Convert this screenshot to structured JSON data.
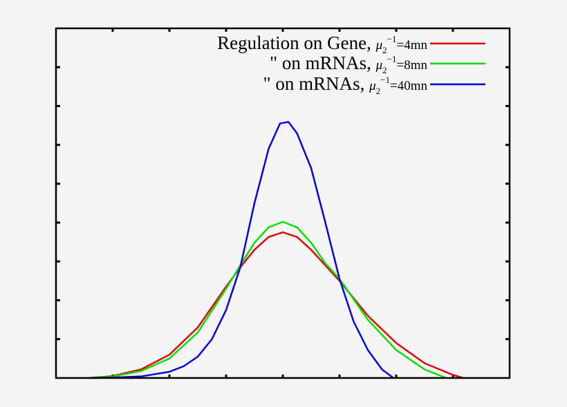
{
  "chart_data": {
    "type": "line",
    "title": "",
    "xlabel": "",
    "ylabel": "",
    "xlim": [
      0,
      8
    ],
    "ylim": [
      0,
      9
    ],
    "x_ticks": [
      0,
      1,
      2,
      3,
      4,
      5,
      6,
      7,
      8
    ],
    "y_ticks": [
      0,
      1,
      2,
      3,
      4,
      5,
      6,
      7,
      8,
      9
    ],
    "tick_labels_visible": false,
    "grid": false,
    "legend_position": "top-right",
    "series": [
      {
        "name": "Regulation on Gene, μ2^-1=4mn",
        "label_main": "Regulation on Gene,",
        "label_param": "=4mn",
        "color": "#e00000",
        "x": [
          0.57,
          1.0,
          1.5,
          2.0,
          2.5,
          3.0,
          3.25,
          3.5,
          3.75,
          4.0,
          4.25,
          4.5,
          4.75,
          5.0,
          5.5,
          6.0,
          6.5,
          7.0,
          7.18
        ],
        "y": [
          0.0,
          0.05,
          0.22,
          0.6,
          1.3,
          2.35,
          2.85,
          3.3,
          3.63,
          3.75,
          3.63,
          3.3,
          2.9,
          2.5,
          1.6,
          0.9,
          0.38,
          0.08,
          0.0
        ]
      },
      {
        "name": "\" on mRNAs, μ2^-1=8mn",
        "label_main": "\"    on mRNAs,",
        "label_param": "=8mn",
        "color": "#00e000",
        "x": [
          0.57,
          1.0,
          1.5,
          2.0,
          2.5,
          3.0,
          3.25,
          3.5,
          3.75,
          4.0,
          4.25,
          4.5,
          4.75,
          5.0,
          5.5,
          6.0,
          6.5,
          6.88
        ],
        "y": [
          0.0,
          0.04,
          0.18,
          0.5,
          1.17,
          2.3,
          2.9,
          3.48,
          3.88,
          4.02,
          3.88,
          3.48,
          2.95,
          2.55,
          1.5,
          0.72,
          0.22,
          0.0
        ]
      },
      {
        "name": "\" on mRNAs, μ2^-1=40mn",
        "label_main": "\"    on mRNAs,",
        "label_param": "=40mn",
        "color": "#0000e0",
        "x": [
          0.6,
          1.0,
          1.5,
          2.0,
          2.25,
          2.5,
          2.75,
          3.0,
          3.25,
          3.5,
          3.75,
          3.95,
          4.1,
          4.25,
          4.5,
          4.75,
          5.0,
          5.25,
          5.5,
          5.75,
          5.95
        ],
        "y": [
          0.0,
          0.01,
          0.04,
          0.16,
          0.3,
          0.55,
          1.0,
          1.75,
          2.85,
          4.5,
          5.9,
          6.55,
          6.59,
          6.3,
          5.4,
          4.0,
          2.55,
          1.45,
          0.72,
          0.22,
          0.0
        ]
      }
    ]
  },
  "legend": {
    "entries": [
      {
        "main": "Regulation on Gene,",
        "mu": "μ",
        "sub": "2",
        "sup": "−1",
        "value": "=4mn",
        "color": "#e00000"
      },
      {
        "main": "\"    on mRNAs,",
        "mu": "μ",
        "sub": "2",
        "sup": "−1",
        "value": "=8mn",
        "color": "#00e000"
      },
      {
        "main": "\"    on mRNAs,",
        "mu": "μ",
        "sub": "2",
        "sup": "−1",
        "value": "=40mn",
        "color": "#0000e0"
      }
    ]
  },
  "colors": {
    "background": "#f5f5f5",
    "axis": "#000000"
  }
}
